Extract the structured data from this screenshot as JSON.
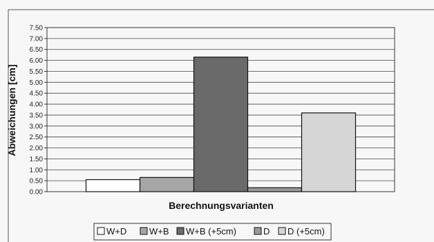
{
  "chart_data": {
    "type": "bar",
    "xlabel": "Berechnungsvarianten",
    "ylabel": "Abweichungen [cm]",
    "ylim": [
      0,
      7.5
    ],
    "ytick_step": 0.5,
    "yticks": [
      "0.00",
      "0.50",
      "1.00",
      "1.50",
      "2.00",
      "2.50",
      "3.00",
      "3.50",
      "4.00",
      "4.50",
      "5.00",
      "5.50",
      "6.00",
      "6.50",
      "7.00",
      "7.50"
    ],
    "grid": true,
    "legend_position": "bottom",
    "series": [
      {
        "name": "W+D",
        "value": 0.55,
        "color": "#ffffff"
      },
      {
        "name": "W+B",
        "value": 0.65,
        "color": "#a6a6a6"
      },
      {
        "name": "W+B (+5cm)",
        "value": 6.15,
        "color": "#6a6a6a"
      },
      {
        "name": "D",
        "value": 0.18,
        "color": "#9a9a9a"
      },
      {
        "name": "D (+5cm)",
        "value": 3.6,
        "color": "#d6d6d6"
      }
    ]
  }
}
